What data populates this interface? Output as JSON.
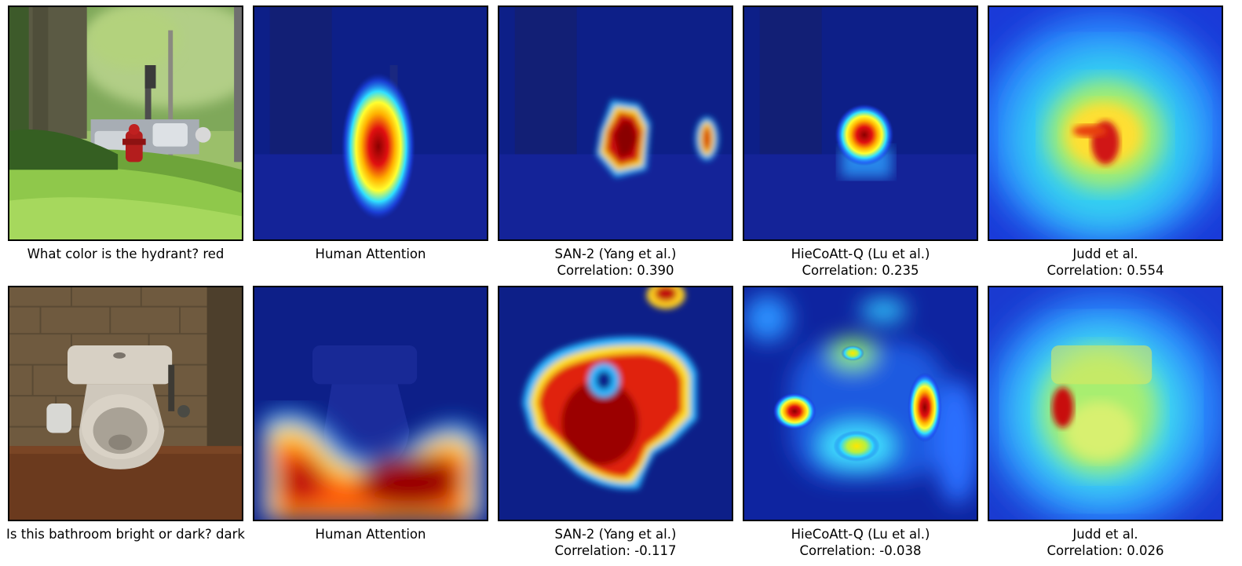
{
  "rows": [
    {
      "question": "What color is the hydrant? red",
      "columns": [
        {
          "title": "Human Attention",
          "corr": ""
        },
        {
          "title": "SAN-2 (Yang et al.)",
          "corr": "Correlation: 0.390"
        },
        {
          "title": "HieCoAtt-Q (Lu et al.)",
          "corr": "Correlation: 0.235"
        },
        {
          "title": "Judd et al.",
          "corr": "Correlation: 0.554"
        }
      ]
    },
    {
      "question": "Is this bathroom bright or dark? dark",
      "columns": [
        {
          "title": "Human Attention",
          "corr": ""
        },
        {
          "title": "SAN-2 (Yang et al.)",
          "corr": "Correlation: -0.117"
        },
        {
          "title": "HieCoAtt-Q (Lu et al.)",
          "corr": "Correlation: -0.038"
        },
        {
          "title": "Judd et al.",
          "corr": "Correlation: 0.026"
        }
      ]
    }
  ],
  "colors": {
    "heat_low": "#0a1a8c",
    "heat_mid": "#22d4ff",
    "heat_high": "#ffe600",
    "heat_peak": "#b40000"
  }
}
